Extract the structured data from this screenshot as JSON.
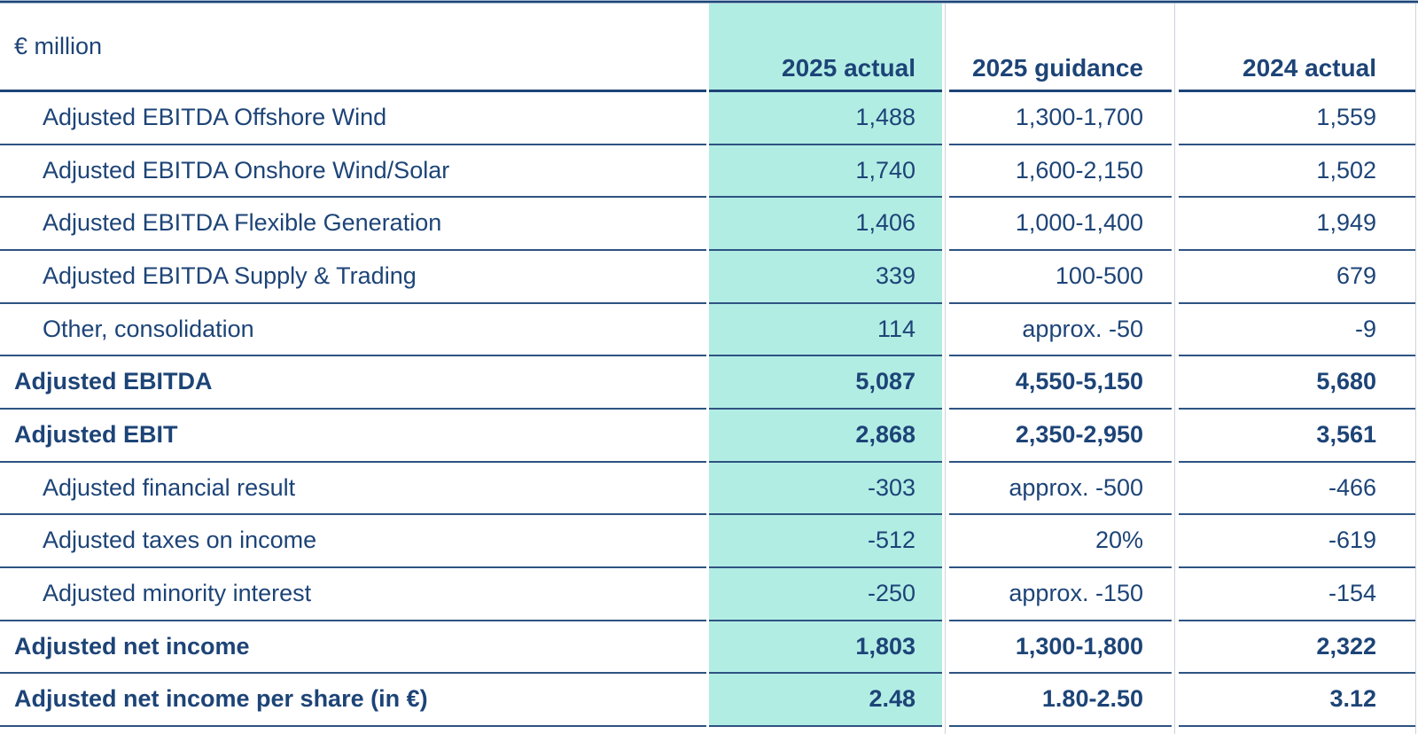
{
  "table": {
    "unit_label": "€ million",
    "columns": [
      "2025 actual",
      "2025 guidance",
      "2024 actual"
    ],
    "rows": [
      {
        "label": "Adjusted EBITDA Offshore Wind",
        "actual2025": "1,488",
        "guidance2025": "1,300-1,700",
        "actual2024": "1,559",
        "bold": false
      },
      {
        "label": "Adjusted EBITDA Onshore Wind/Solar",
        "actual2025": "1,740",
        "guidance2025": "1,600-2,150",
        "actual2024": "1,502",
        "bold": false
      },
      {
        "label": "Adjusted EBITDA Flexible Generation",
        "actual2025": "1,406",
        "guidance2025": "1,000-1,400",
        "actual2024": "1,949",
        "bold": false
      },
      {
        "label": "Adjusted EBITDA Supply & Trading",
        "actual2025": "339",
        "guidance2025": "100-500",
        "actual2024": "679",
        "bold": false
      },
      {
        "label": "Other, consolidation",
        "actual2025": "114",
        "guidance2025": "approx. -50",
        "actual2024": "-9",
        "bold": false
      },
      {
        "label": "Adjusted EBITDA",
        "actual2025": "5,087",
        "guidance2025": "4,550-5,150",
        "actual2024": "5,680",
        "bold": true
      },
      {
        "label": "Adjusted EBIT",
        "actual2025": "2,868",
        "guidance2025": "2,350-2,950",
        "actual2024": "3,561",
        "bold": true
      },
      {
        "label": "Adjusted financial result",
        "actual2025": "-303",
        "guidance2025": "approx. -500",
        "actual2024": "-466",
        "bold": false
      },
      {
        "label": "Adjusted taxes on income",
        "actual2025": "-512",
        "guidance2025": "20%",
        "actual2024": "-619",
        "bold": false
      },
      {
        "label": "Adjusted minority interest",
        "actual2025": "-250",
        "guidance2025": "approx. -150",
        "actual2024": "-154",
        "bold": false
      },
      {
        "label": "Adjusted net income",
        "actual2025": "1,803",
        "guidance2025": "1,300-1,800",
        "actual2024": "2,322",
        "bold": true
      },
      {
        "label": "Adjusted net income per share (in €)",
        "actual2025": "2.48",
        "guidance2025": "1.80-2.50",
        "actual2024": "3.12",
        "bold": true
      }
    ]
  },
  "colors": {
    "highlight_column": "#b2ede4",
    "text_navy": "#1d4477",
    "rule_navy": "#2e5382",
    "separator_gray": "#ccd3db"
  }
}
